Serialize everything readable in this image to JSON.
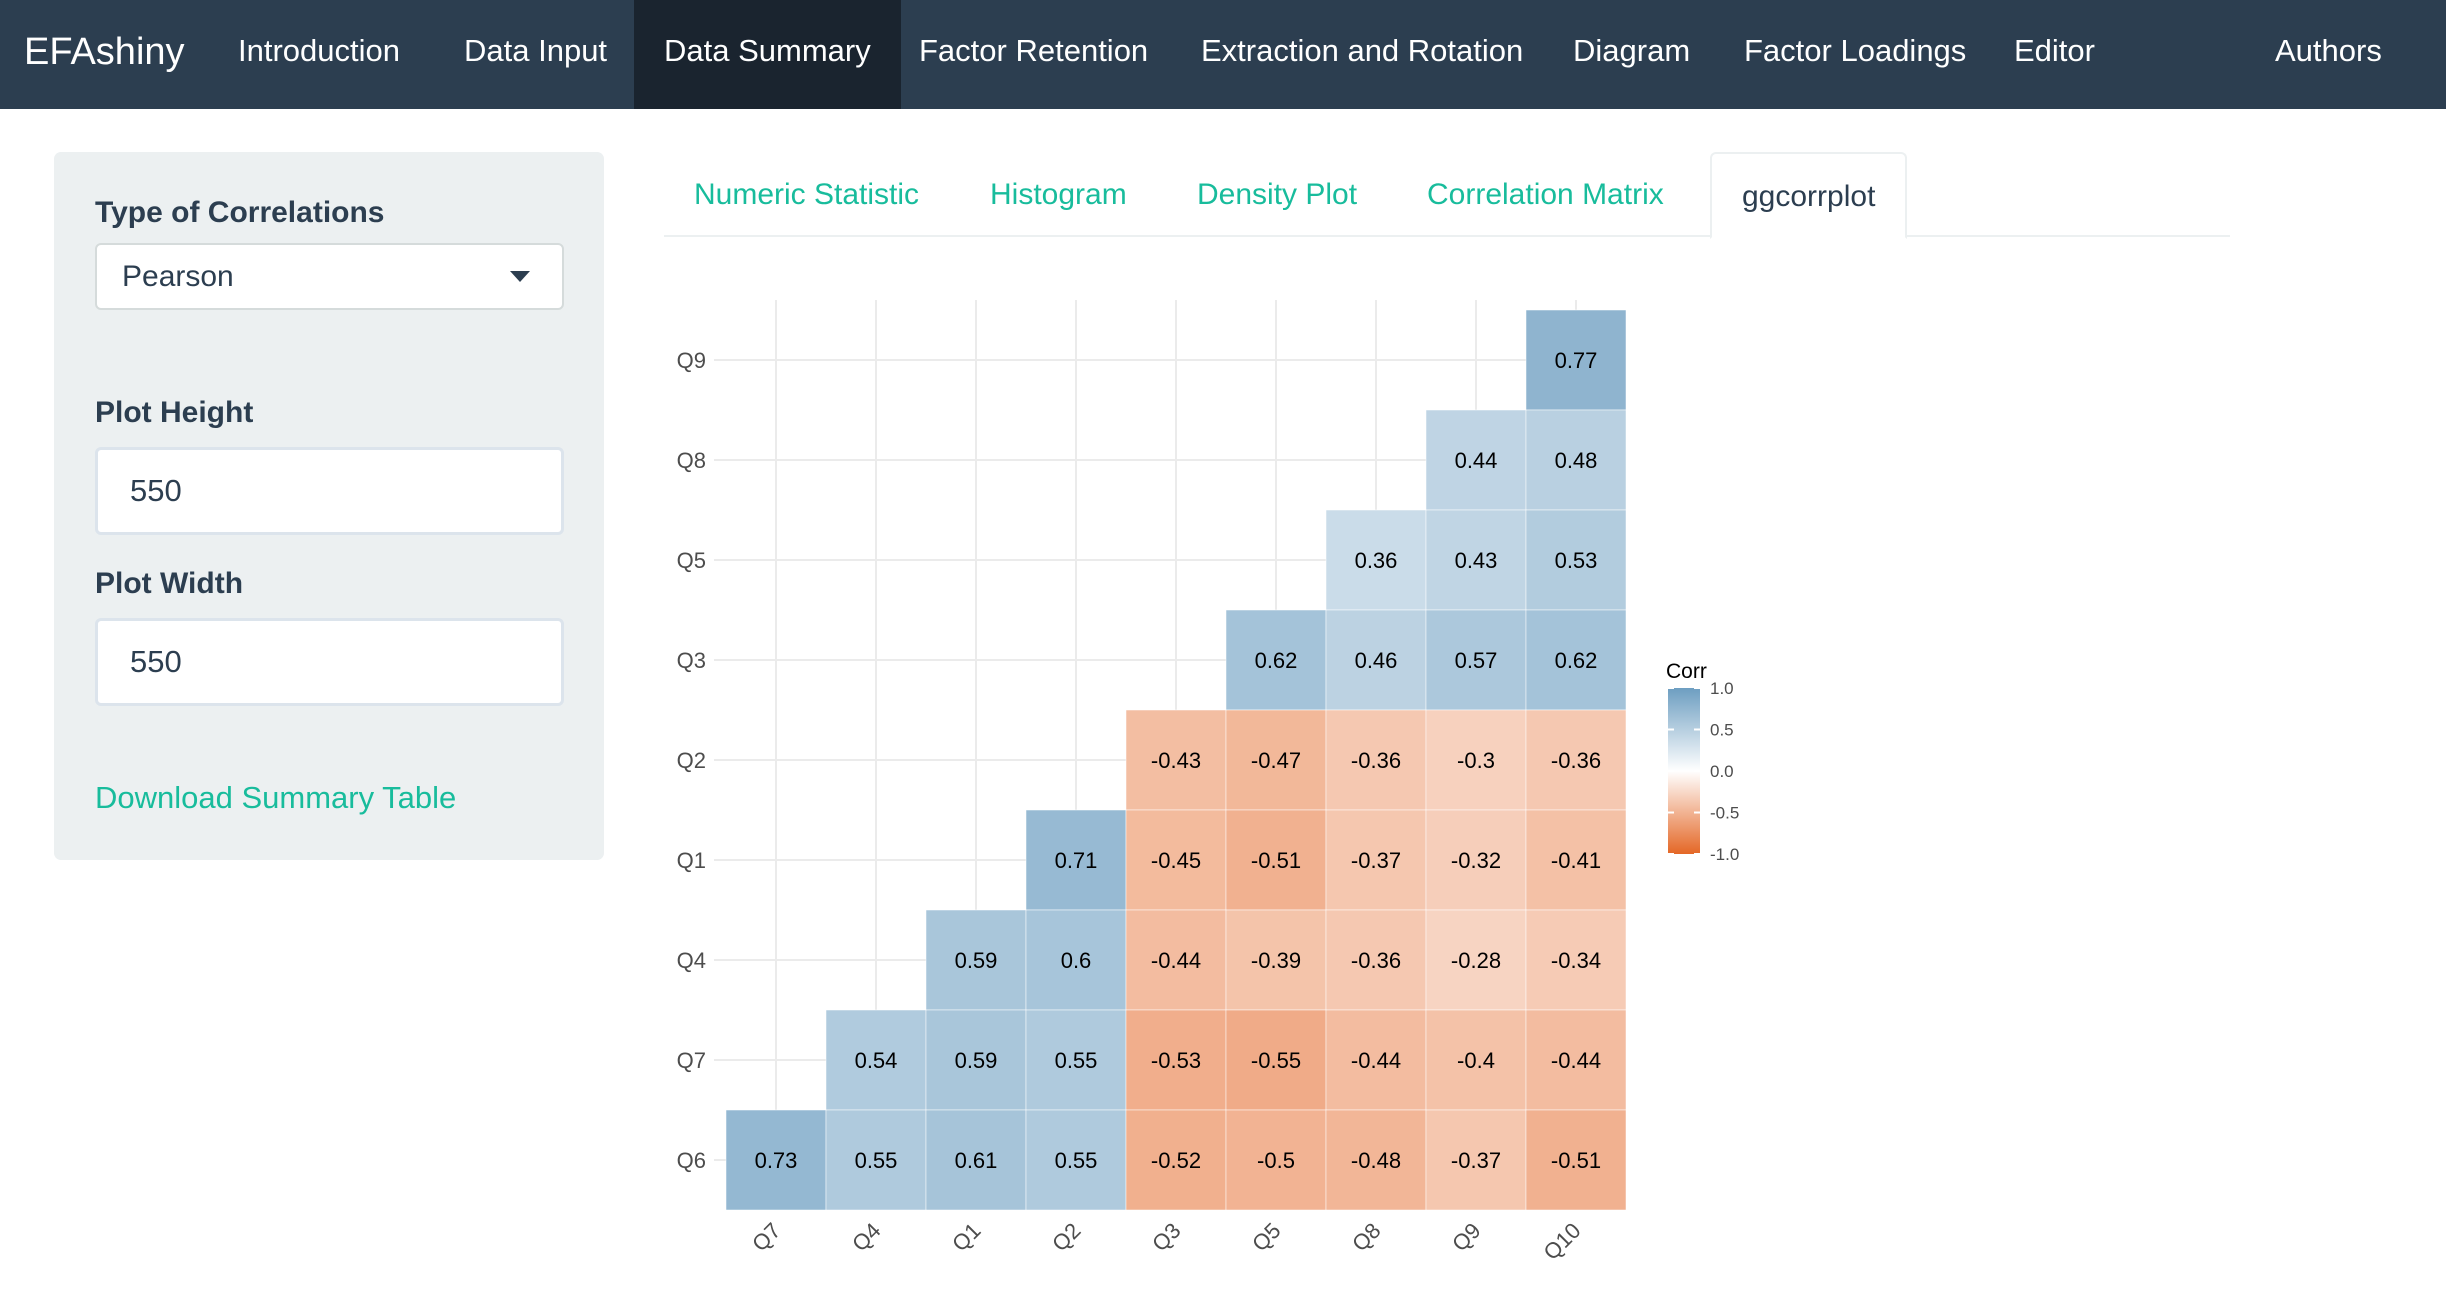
{
  "navbar": {
    "brand": "EFAshiny",
    "items": [
      {
        "label": "Introduction",
        "name": "nav-introduction"
      },
      {
        "label": "Data Input",
        "name": "nav-data-input"
      },
      {
        "label": "Data Summary",
        "name": "nav-data-summary"
      },
      {
        "label": "Factor Retention",
        "name": "nav-factor-retention"
      },
      {
        "label": "Extraction and Rotation",
        "name": "nav-extraction-rotation"
      },
      {
        "label": "Diagram",
        "name": "nav-diagram"
      },
      {
        "label": "Factor Loadings",
        "name": "nav-factor-loadings"
      },
      {
        "label": "Editor",
        "name": "nav-editor"
      },
      {
        "label": "Authors",
        "name": "nav-authors"
      }
    ],
    "active": "Data Summary"
  },
  "sidebar": {
    "corr_type_label": "Type of Correlations",
    "corr_type_value": "Pearson",
    "plot_height_label": "Plot Height",
    "plot_height_value": "550",
    "plot_width_label": "Plot Width",
    "plot_width_value": "550",
    "download_link": "Download Summary Table"
  },
  "tabs": [
    {
      "label": "Numeric Statistic",
      "name": "tab-numeric-statistic"
    },
    {
      "label": "Histogram",
      "name": "tab-histogram"
    },
    {
      "label": "Density Plot",
      "name": "tab-density-plot"
    },
    {
      "label": "Correlation Matrix",
      "name": "tab-correlation-matrix"
    },
    {
      "label": "ggcorrplot",
      "name": "tab-ggcorrplot"
    }
  ],
  "active_tab": "ggcorrplot",
  "colors": {
    "navbar_bg": "#2c3e50",
    "navbar_active": "#1a242f",
    "accent": "#18bc9c",
    "text": "#2c3e50",
    "sidebar_bg": "#ecf0f1",
    "corr_high": "#6d9ec1",
    "corr_mid": "#ffffff",
    "corr_low": "#e46726"
  },
  "chart_data": {
    "type": "heatmap",
    "x_labels": [
      "Q7",
      "Q4",
      "Q1",
      "Q2",
      "Q3",
      "Q5",
      "Q8",
      "Q9",
      "Q10"
    ],
    "y_labels": [
      "Q9",
      "Q8",
      "Q5",
      "Q3",
      "Q2",
      "Q1",
      "Q4",
      "Q7",
      "Q6"
    ],
    "values": [
      [
        null,
        null,
        null,
        null,
        null,
        null,
        null,
        null,
        0.77
      ],
      [
        null,
        null,
        null,
        null,
        null,
        null,
        null,
        0.44,
        0.48
      ],
      [
        null,
        null,
        null,
        null,
        null,
        null,
        0.36,
        0.43,
        0.53
      ],
      [
        null,
        null,
        null,
        null,
        null,
        0.62,
        0.46,
        0.57,
        0.62
      ],
      [
        null,
        null,
        null,
        null,
        -0.43,
        -0.47,
        -0.36,
        -0.3,
        -0.36
      ],
      [
        null,
        null,
        null,
        0.71,
        -0.45,
        -0.51,
        -0.37,
        -0.32,
        -0.41
      ],
      [
        null,
        null,
        0.59,
        0.6,
        -0.44,
        -0.39,
        -0.36,
        -0.28,
        -0.34
      ],
      [
        null,
        0.54,
        0.59,
        0.55,
        -0.53,
        -0.55,
        -0.44,
        -0.4,
        -0.44
      ],
      [
        0.73,
        0.55,
        0.61,
        0.55,
        -0.52,
        -0.5,
        -0.48,
        -0.37,
        -0.51
      ]
    ],
    "legend": {
      "title": "Corr",
      "ticks": [
        "1.0",
        "0.5",
        "0.0",
        "-0.5",
        "-1.0"
      ],
      "range": [
        -1,
        1
      ],
      "placement": "right"
    },
    "grid": true
  }
}
